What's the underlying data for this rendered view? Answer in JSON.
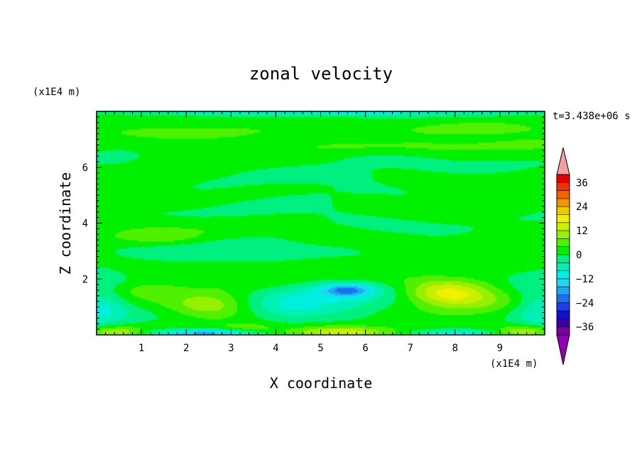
{
  "chart_data": {
    "type": "heatmap",
    "title": "zonal velocity",
    "xlabel": "X coordinate",
    "ylabel": "Z coordinate",
    "x_unit": "(x1E4 m)",
    "y_unit": "(x1E4 m)",
    "time_label": "t=3.438e+06 s",
    "xlim": [
      0,
      10
    ],
    "ylim": [
      0,
      8
    ],
    "x_ticks": [
      1,
      2,
      3,
      4,
      5,
      6,
      7,
      8,
      9
    ],
    "y_ticks": [
      2,
      4,
      6
    ],
    "colorbar": {
      "min": -40,
      "max": 40,
      "step": 4,
      "tick_values": [
        36,
        24,
        12,
        0,
        -12,
        -24,
        -36
      ],
      "tick_labels": [
        "36",
        "24",
        "12",
        "0",
        "−12",
        "−24",
        "−36"
      ],
      "extend": "both"
    },
    "palette": [
      "#7a00a8",
      "#3a00a8",
      "#1010c8",
      "#1c3cf0",
      "#1c70f0",
      "#1ca8f0",
      "#1cd8f0",
      "#00f0e0",
      "#00f0b4",
      "#00f080",
      "#00f000",
      "#50f000",
      "#96f000",
      "#c8f000",
      "#f0f000",
      "#f0c800",
      "#f09600",
      "#f06400",
      "#f03200",
      "#e00000"
    ],
    "over_color": "#f0a0a0",
    "under_color": "#9000b0",
    "features": [
      {
        "x": 5.6,
        "z": 1.6,
        "sx": 0.55,
        "sz": 0.22,
        "amp": -17
      },
      {
        "x": 5.2,
        "z": 1.25,
        "sx": 1.4,
        "sz": 0.55,
        "amp": -9
      },
      {
        "x": 4.2,
        "z": 1.0,
        "sx": 0.9,
        "sz": 0.4,
        "amp": -6
      },
      {
        "x": 7.8,
        "z": 1.55,
        "sx": 0.9,
        "sz": 0.4,
        "amp": 14
      },
      {
        "x": 8.2,
        "z": 1.2,
        "sx": 1.0,
        "sz": 0.5,
        "amp": 6
      },
      {
        "x": 2.5,
        "z": 1.05,
        "sx": 0.9,
        "sz": 0.45,
        "amp": 10
      },
      {
        "x": 1.2,
        "z": 1.6,
        "sx": 0.7,
        "sz": 0.25,
        "amp": 4
      },
      {
        "x": 0.1,
        "z": 1.0,
        "sx": 0.6,
        "sz": 0.9,
        "amp": -9
      },
      {
        "x": 9.9,
        "z": 1.0,
        "sx": 0.6,
        "sz": 0.9,
        "amp": -9
      },
      {
        "x": 2.4,
        "z": 0.05,
        "sx": 1.2,
        "sz": 0.14,
        "amp": -20
      },
      {
        "x": 8.0,
        "z": 0.05,
        "sx": 0.8,
        "sz": 0.14,
        "amp": -14
      },
      {
        "x": 5.5,
        "z": 0.1,
        "sx": 1.0,
        "sz": 0.2,
        "amp": 12
      },
      {
        "x": 0.4,
        "z": 0.1,
        "sx": 0.6,
        "sz": 0.2,
        "amp": 12
      },
      {
        "x": 9.6,
        "z": 0.12,
        "sx": 0.6,
        "sz": 0.2,
        "amp": 12
      },
      {
        "x": 3.4,
        "z": 0.25,
        "sx": 0.6,
        "sz": 0.2,
        "amp": 5
      },
      {
        "x": 5.0,
        "z": 7.95,
        "sx": 6.0,
        "sz": 0.12,
        "amp": -10
      },
      {
        "x": 2.0,
        "z": 7.2,
        "sx": 1.5,
        "sz": 0.2,
        "amp": 6
      },
      {
        "x": 8.0,
        "z": 7.35,
        "sx": 1.2,
        "sz": 0.2,
        "amp": 6
      },
      {
        "x": 4.2,
        "z": 7.55,
        "sx": 1.5,
        "sz": 0.15,
        "amp": -3
      },
      {
        "x": 6.0,
        "z": 6.3,
        "sx": 1.4,
        "sz": 0.3,
        "amp": -3
      },
      {
        "x": 4.5,
        "z": 5.8,
        "sx": 1.6,
        "sz": 0.3,
        "amp": -3
      },
      {
        "x": 5.0,
        "z": 4.5,
        "sx": 2.5,
        "sz": 0.5,
        "amp": -3
      },
      {
        "x": 3.0,
        "z": 3.0,
        "sx": 2.0,
        "sz": 0.5,
        "amp": -3
      },
      {
        "x": 1.5,
        "z": 3.5,
        "sx": 0.8,
        "sz": 0.3,
        "amp": 3
      },
      {
        "x": 0.5,
        "z": 6.5,
        "sx": 0.5,
        "sz": 0.3,
        "amp": -3
      }
    ],
    "background_bands": [
      {
        "z": 1.9,
        "amp": 1.5
      },
      {
        "z": 3.4,
        "amp": 1.2
      },
      {
        "z": 6.8,
        "amp": 2.5
      },
      {
        "z": 7.4,
        "amp": 2.0
      }
    ]
  }
}
